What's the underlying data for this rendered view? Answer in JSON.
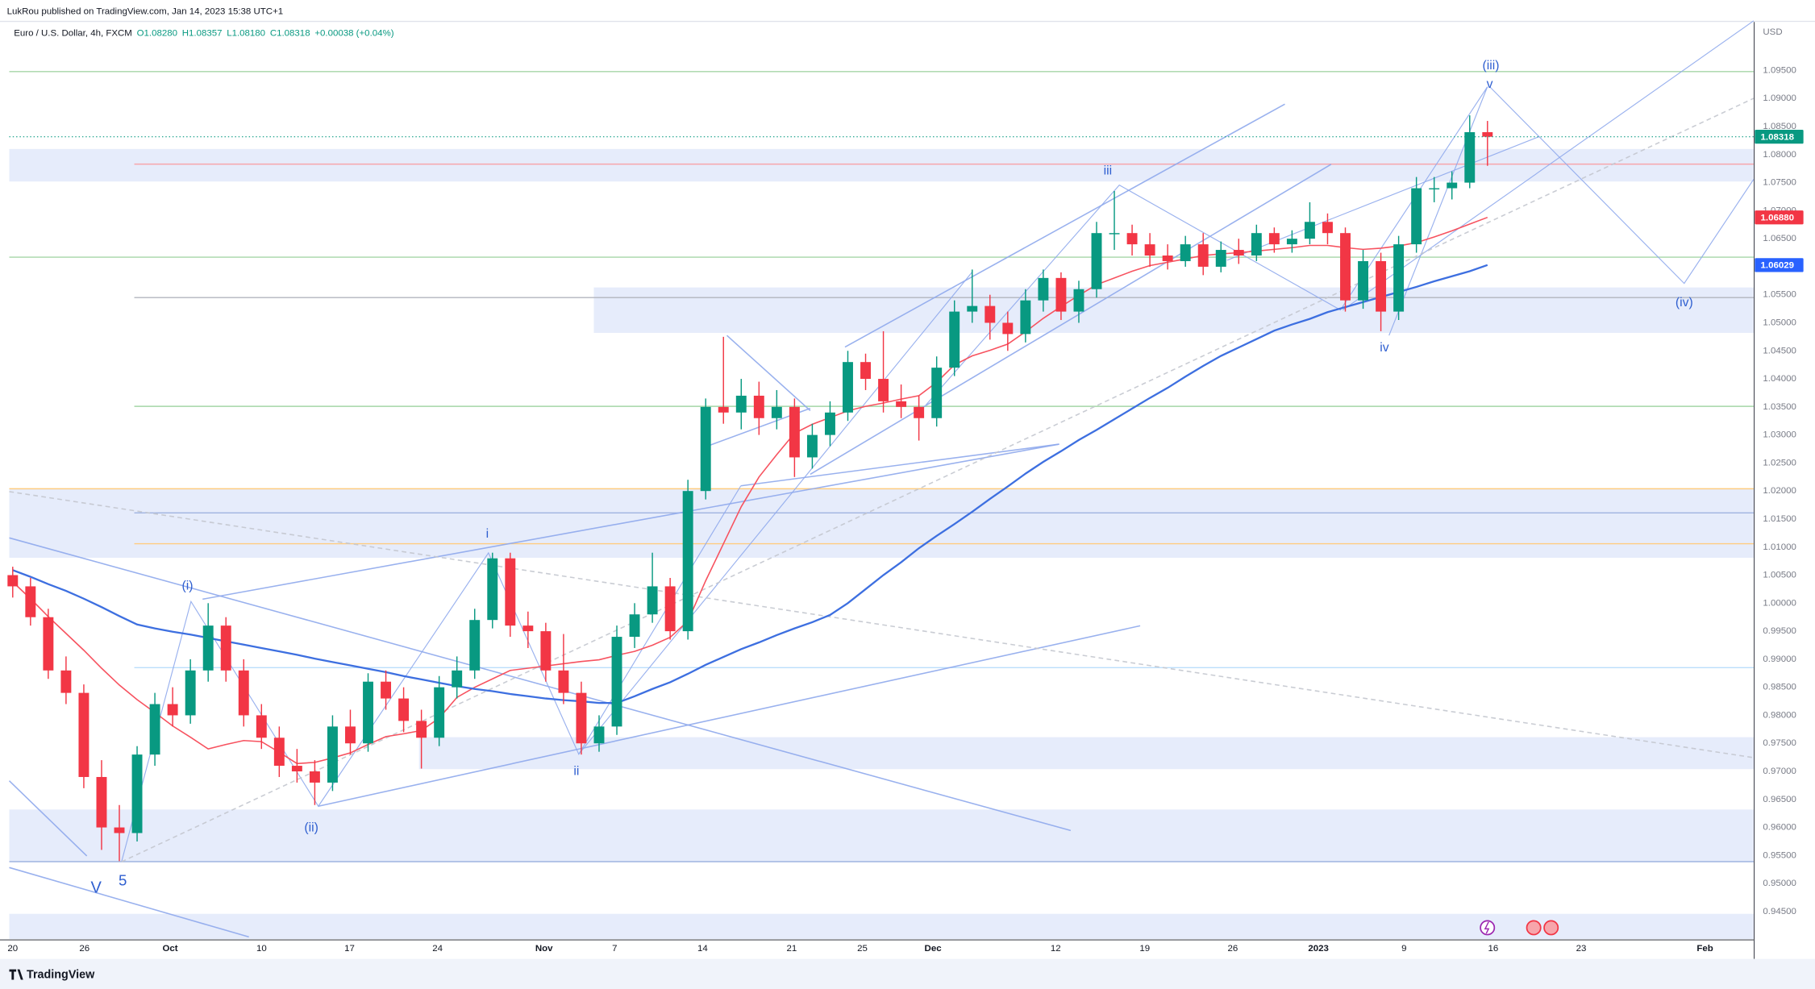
{
  "header": {
    "publisher": "LukRou published on TradingView.com, Jan 14, 2023 15:38 UTC+1",
    "symbol": "Euro / U.S. Dollar, 4h, FXCM",
    "ohlc": [
      "O1.08280",
      "H1.08357",
      "L1.08180",
      "C1.08318"
    ],
    "change": "+0.00038 (+0.04%)"
  },
  "footer": {
    "brand": "TradingView"
  },
  "chart_data": {
    "type": "candlestick",
    "currency": "USD",
    "up_color": "#089981",
    "down_color": "#f23645",
    "grid": false,
    "ylim": [
      0.94006,
      1.10365
    ],
    "yticks": [
      {
        "value": 0.945,
        "label": "0.94500"
      },
      {
        "value": 0.95,
        "label": "0.95000"
      },
      {
        "value": 0.955,
        "label": "0.95500"
      },
      {
        "value": 0.96,
        "label": "0.96000"
      },
      {
        "value": 0.965,
        "label": "0.96500"
      },
      {
        "value": 0.97,
        "label": "0.97000"
      },
      {
        "value": 0.975,
        "label": "0.97500"
      },
      {
        "value": 0.98,
        "label": "0.98000"
      },
      {
        "value": 0.985,
        "label": "0.98500"
      },
      {
        "value": 0.99,
        "label": "0.99000"
      },
      {
        "value": 0.995,
        "label": "0.99500"
      },
      {
        "value": 1,
        "label": "1.00000"
      },
      {
        "value": 1.005,
        "label": "1.00500"
      },
      {
        "value": 1.01,
        "label": "1.01000"
      },
      {
        "value": 1.015,
        "label": "1.01500"
      },
      {
        "value": 1.02,
        "label": "1.02000"
      },
      {
        "value": 1.025,
        "label": "1.02500"
      },
      {
        "value": 1.03,
        "label": "1.03000"
      },
      {
        "value": 1.035,
        "label": "1.03500"
      },
      {
        "value": 1.04,
        "label": "1.04000"
      },
      {
        "value": 1.045,
        "label": "1.04500"
      },
      {
        "value": 1.05,
        "label": "1.05000"
      },
      {
        "value": 1.055,
        "label": "1.05500"
      },
      {
        "value": 1.06,
        "label": "1.06000"
      },
      {
        "value": 1.065,
        "label": "1.06500"
      },
      {
        "value": 1.07,
        "label": "1.07000"
      },
      {
        "value": 1.075,
        "label": "1.07500"
      },
      {
        "value": 1.08,
        "label": "1.08000"
      },
      {
        "value": 1.085,
        "label": "1.08500"
      },
      {
        "value": 1.09,
        "label": "1.09000"
      },
      {
        "value": 1.095,
        "label": "1.09500"
      }
    ],
    "time_labels": [
      "20",
      "26",
      "Oct",
      "10",
      "17",
      "24",
      "Nov",
      "7",
      "14",
      "21",
      "25",
      "Dec",
      "12",
      "19",
      "26",
      "2023",
      "9",
      "16",
      "23",
      "Feb"
    ],
    "candles": [
      [
        1.005,
        1.0065,
        1.001,
        1.003
      ],
      [
        1.003,
        1.0045,
        0.996,
        0.9975
      ],
      [
        0.9975,
        0.999,
        0.9865,
        0.988
      ],
      [
        0.988,
        0.9905,
        0.982,
        0.984
      ],
      [
        0.984,
        0.9855,
        0.967,
        0.969
      ],
      [
        0.969,
        0.972,
        0.956,
        0.96
      ],
      [
        0.96,
        0.964,
        0.954,
        0.959
      ],
      [
        0.959,
        0.9745,
        0.9575,
        0.973
      ],
      [
        0.973,
        0.984,
        0.971,
        0.982
      ],
      [
        0.982,
        0.985,
        0.978,
        0.98
      ],
      [
        0.98,
        0.99,
        0.9785,
        0.988
      ],
      [
        0.988,
        1.0,
        0.986,
        0.996
      ],
      [
        0.996,
        0.9975,
        0.986,
        0.988
      ],
      [
        0.988,
        0.99,
        0.978,
        0.98
      ],
      [
        0.98,
        0.982,
        0.974,
        0.976
      ],
      [
        0.976,
        0.978,
        0.969,
        0.971
      ],
      [
        0.971,
        0.974,
        0.968,
        0.97
      ],
      [
        0.97,
        0.972,
        0.964,
        0.968
      ],
      [
        0.968,
        0.98,
        0.9665,
        0.978
      ],
      [
        0.978,
        0.981,
        0.973,
        0.975
      ],
      [
        0.975,
        0.9875,
        0.9735,
        0.986
      ],
      [
        0.986,
        0.988,
        0.981,
        0.983
      ],
      [
        0.983,
        0.985,
        0.977,
        0.979
      ],
      [
        0.979,
        0.981,
        0.9705,
        0.976
      ],
      [
        0.976,
        0.987,
        0.9745,
        0.985
      ],
      [
        0.985,
        0.9905,
        0.983,
        0.988
      ],
      [
        0.988,
        0.999,
        0.9865,
        0.997
      ],
      [
        0.997,
        1.009,
        0.9955,
        1.008
      ],
      [
        1.008,
        1.009,
        0.994,
        0.996
      ],
      [
        0.996,
        0.9985,
        0.992,
        0.995
      ],
      [
        0.995,
        0.9965,
        0.986,
        0.988
      ],
      [
        0.988,
        0.9945,
        0.982,
        0.984
      ],
      [
        0.984,
        0.986,
        0.973,
        0.975
      ],
      [
        0.975,
        0.98,
        0.9735,
        0.978
      ],
      [
        0.978,
        0.996,
        0.9765,
        0.994
      ],
      [
        0.994,
        1.0,
        0.992,
        0.998
      ],
      [
        0.998,
        1.009,
        0.9965,
        1.003
      ],
      [
        1.003,
        1.0045,
        0.9935,
        0.995
      ],
      [
        0.995,
        1.022,
        0.9935,
        1.02
      ],
      [
        1.02,
        1.0365,
        1.0185,
        1.035
      ],
      [
        1.035,
        1.0475,
        1.032,
        1.034
      ],
      [
        1.034,
        1.04,
        1.031,
        1.037
      ],
      [
        1.037,
        1.0395,
        1.03,
        1.033
      ],
      [
        1.033,
        1.038,
        1.031,
        1.035
      ],
      [
        1.035,
        1.0365,
        1.0225,
        1.026
      ],
      [
        1.026,
        1.032,
        1.024,
        1.03
      ],
      [
        1.03,
        1.036,
        1.028,
        1.034
      ],
      [
        1.034,
        1.045,
        1.0325,
        1.043
      ],
      [
        1.043,
        1.0445,
        1.038,
        1.04
      ],
      [
        1.04,
        1.0485,
        1.034,
        1.036
      ],
      [
        1.036,
        1.039,
        1.033,
        1.035
      ],
      [
        1.035,
        1.037,
        1.029,
        1.033
      ],
      [
        1.033,
        1.044,
        1.0315,
        1.042
      ],
      [
        1.042,
        1.054,
        1.0405,
        1.052
      ],
      [
        1.052,
        1.0595,
        1.05,
        1.053
      ],
      [
        1.053,
        1.055,
        1.047,
        1.05
      ],
      [
        1.05,
        1.052,
        1.045,
        1.048
      ],
      [
        1.048,
        1.056,
        1.0465,
        1.054
      ],
      [
        1.054,
        1.0595,
        1.052,
        1.058
      ],
      [
        1.058,
        1.059,
        1.0505,
        1.052
      ],
      [
        1.052,
        1.0575,
        1.05,
        1.056
      ],
      [
        1.056,
        1.068,
        1.0545,
        1.066
      ],
      [
        1.066,
        1.0735,
        1.063,
        1.066
      ],
      [
        1.066,
        1.0675,
        1.062,
        1.064
      ],
      [
        1.064,
        1.066,
        1.06,
        1.062
      ],
      [
        1.062,
        1.064,
        1.0595,
        1.061
      ],
      [
        1.061,
        1.0655,
        1.06,
        1.064
      ],
      [
        1.064,
        1.066,
        1.0585,
        1.06
      ],
      [
        1.06,
        1.0645,
        1.059,
        1.063
      ],
      [
        1.063,
        1.065,
        1.0605,
        1.062
      ],
      [
        1.062,
        1.0675,
        1.061,
        1.066
      ],
      [
        1.066,
        1.067,
        1.0625,
        1.064
      ],
      [
        1.064,
        1.0665,
        1.0625,
        1.065
      ],
      [
        1.065,
        1.0715,
        1.064,
        1.068
      ],
      [
        1.068,
        1.0695,
        1.064,
        1.066
      ],
      [
        1.066,
        1.067,
        1.052,
        1.054
      ],
      [
        1.054,
        1.063,
        1.0525,
        1.061
      ],
      [
        1.061,
        1.0625,
        1.0485,
        1.052
      ],
      [
        1.052,
        1.0655,
        1.0505,
        1.064
      ],
      [
        1.064,
        1.076,
        1.0625,
        1.074
      ],
      [
        1.074,
        1.076,
        1.0715,
        1.074
      ],
      [
        1.074,
        1.077,
        1.072,
        1.075
      ],
      [
        1.075,
        1.087,
        1.074,
        1.084
      ],
      [
        1.084,
        1.086,
        1.078,
        1.08318
      ]
    ],
    "moving_averages": [
      {
        "color": "#f7525f",
        "values": [
          1.0038,
          1.0008,
          0.9976,
          0.9946,
          0.9916,
          0.9884,
          0.9854,
          0.9828,
          0.9805,
          0.9781,
          0.9761,
          0.974,
          0.9748,
          0.9755,
          0.9753,
          0.9734,
          0.9714,
          0.9716,
          0.9724,
          0.9733,
          0.9748,
          0.9762,
          0.9767,
          0.9773,
          0.9795,
          0.9832,
          0.985,
          0.9865,
          0.988,
          0.9884,
          0.9888,
          0.9892,
          0.9896,
          0.9899,
          0.9907,
          0.9914,
          0.9925,
          0.9939,
          0.9968,
          1.004,
          1.0106,
          1.0172,
          1.0225,
          1.0265,
          1.0303,
          1.0319,
          1.0331,
          1.0343,
          1.0351,
          1.0357,
          1.0364,
          1.037,
          1.0394,
          1.0425,
          1.0441,
          1.0451,
          1.0462,
          1.0484,
          1.0508,
          1.0529,
          1.0549,
          1.0568,
          1.058,
          1.0592,
          1.0602,
          1.0608,
          1.0614,
          1.062,
          1.0623,
          1.0625,
          1.0628,
          1.0631,
          1.0634,
          1.0638,
          1.0638,
          1.0634,
          1.0631,
          1.0633,
          1.0637,
          1.0643,
          1.0653,
          1.0664,
          1.0676,
          1.0688
        ]
      },
      {
        "color": "#3d6fe0",
        "values": [
          1.0059,
          1.0047,
          1.0034,
          1.0022,
          1.0008,
          0.9993,
          0.9977,
          0.9962,
          0.9955,
          0.9949,
          0.9944,
          0.9938,
          0.9932,
          0.9926,
          0.992,
          0.9914,
          0.9908,
          0.9901,
          0.9895,
          0.9889,
          0.9883,
          0.9877,
          0.987,
          0.9864,
          0.9858,
          0.9852,
          0.9847,
          0.9843,
          0.9838,
          0.9834,
          0.983,
          0.9827,
          0.9825,
          0.9822,
          0.9822,
          0.9834,
          0.9847,
          0.9859,
          0.9874,
          0.989,
          0.9904,
          0.9918,
          0.993,
          0.9943,
          0.9955,
          0.9966,
          0.9979,
          1.0,
          1.0025,
          1.005,
          1.0073,
          1.0098,
          1.012,
          1.0141,
          1.0163,
          1.0186,
          1.0208,
          1.0231,
          1.0252,
          1.0271,
          1.0291,
          1.0309,
          1.0328,
          1.0347,
          1.0366,
          1.0384,
          1.0404,
          1.0423,
          1.0441,
          1.0456,
          1.0471,
          1.0486,
          1.0497,
          1.0507,
          1.0519,
          1.0528,
          1.0537,
          1.0546,
          1.0555,
          1.0564,
          1.0574,
          1.0583,
          1.0592,
          1.0603
        ]
      }
    ],
    "zone_color": "#e6ecfb",
    "zones": [
      {
        "top": 1.081,
        "bottom": 1.0752
      },
      {
        "top": 1.0563,
        "bottom": 1.0482
      },
      {
        "top": 1.0204,
        "bottom": 1.0081
      },
      {
        "top": 0.9761,
        "bottom": 0.9704
      },
      {
        "top": 0.9632,
        "bottom": 0.9539
      },
      {
        "top": 0.9446,
        "bottom": 0.9401
      }
    ],
    "levels": [
      {
        "value": 1.0948,
        "color": "#a5d6a7"
      },
      {
        "value": 1.0783,
        "color": "#f7a5ab"
      },
      {
        "value": 1.0617,
        "color": "#a5d6a7"
      },
      {
        "value": 1.0545,
        "color": "#b2b5be"
      },
      {
        "value": 1.0351,
        "color": "#a5d6a7"
      },
      {
        "value": 1.0204,
        "color": "#ffcc80"
      },
      {
        "value": 1.0161,
        "color": "#9fb3e0"
      },
      {
        "value": 1.0106,
        "color": "#ffcc80"
      },
      {
        "value": 0.9885,
        "color": "#bbdefb"
      },
      {
        "value": 0.9539,
        "color": "#9fb3e0"
      }
    ],
    "wave_labels": [
      "(i)",
      "(ii)",
      "i",
      "ii",
      "iii",
      "iv",
      "v",
      "(iii)",
      "(iv)",
      "V",
      "5"
    ],
    "price_labels": [
      {
        "value": 1.08318,
        "label": "1.08318",
        "color": "#089981"
      },
      {
        "value": 1.0688,
        "label": "1.06880",
        "color": "#f23645"
      },
      {
        "value": 1.06029,
        "label": "1.06029",
        "color": "#2962ff"
      }
    ]
  }
}
